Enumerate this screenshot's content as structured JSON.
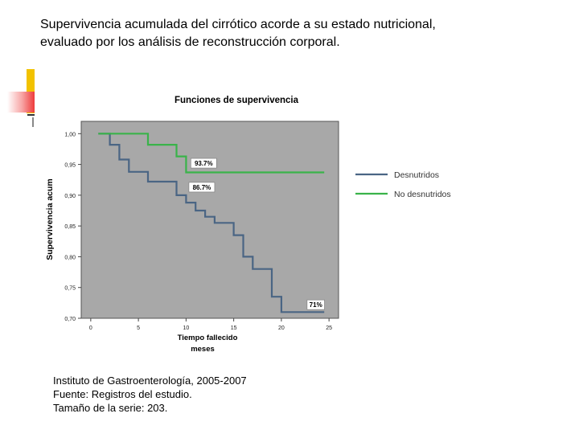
{
  "heading": {
    "line1": "Supervivencia acumulada del cirrótico acorde a su estado nutricional,",
    "line2": "evaluado por los análisis de reconstrucción corporal."
  },
  "source": {
    "line1": "Instituto de Gastroenterología, 2005-2007",
    "line2": "Fuente: Registros del estudio.",
    "line3": "Tamaño de la serie: 203."
  },
  "chart_data": {
    "type": "line",
    "step": true,
    "title": "Funciones de supervivencia",
    "xlabel": "Tiempo fallecido",
    "xlabel2": "meses",
    "ylabel": "Supervivencia acum",
    "xlim": [
      -1,
      26
    ],
    "ylim": [
      0.7,
      1.02
    ],
    "xticks": [
      0,
      5,
      10,
      15,
      20,
      25
    ],
    "xtick_labels": [
      "0",
      "5",
      "10",
      "15",
      "20",
      "25"
    ],
    "yticks": [
      0.7,
      0.75,
      0.8,
      0.85,
      0.9,
      0.95,
      1.0
    ],
    "ytick_labels": [
      "0,70",
      "0,75",
      "0,80",
      "0,85",
      "0,90",
      "0,95",
      "1,00"
    ],
    "plot_background": "#a8a8a8",
    "legend_position": "right",
    "series": [
      {
        "name": "Desnutridos",
        "color": "#4a6584",
        "x": [
          0.8,
          2.0,
          2.0,
          3.0,
          3.0,
          4.0,
          4.0,
          6.0,
          6.0,
          9.0,
          9.0,
          10.0,
          10.0,
          11.0,
          11.0,
          12.0,
          12.0,
          13.0,
          13.0,
          15.0,
          15.0,
          16.0,
          16.0,
          17.0,
          17.0,
          19.0,
          19.0,
          20.0,
          20.0,
          24.5
        ],
        "y": [
          1.0,
          1.0,
          0.982,
          0.982,
          0.958,
          0.958,
          0.938,
          0.938,
          0.922,
          0.922,
          0.9,
          0.9,
          0.888,
          0.888,
          0.875,
          0.875,
          0.865,
          0.865,
          0.855,
          0.855,
          0.835,
          0.835,
          0.8,
          0.8,
          0.78,
          0.78,
          0.735,
          0.735,
          0.71,
          0.71
        ]
      },
      {
        "name": "No desnutridos",
        "color": "#3ab34a",
        "x": [
          0.8,
          6.0,
          6.0,
          9.0,
          9.0,
          10.0,
          10.0,
          24.5
        ],
        "y": [
          1.0,
          1.0,
          0.982,
          0.982,
          0.963,
          0.963,
          0.937,
          0.937
        ]
      }
    ],
    "annotations": [
      {
        "text": "93.7%",
        "x": 10.5,
        "y": 0.952
      },
      {
        "text": "86.7%",
        "x": 10.3,
        "y": 0.913
      },
      {
        "text": "71%",
        "x": 22.7,
        "y": 0.722
      }
    ]
  }
}
